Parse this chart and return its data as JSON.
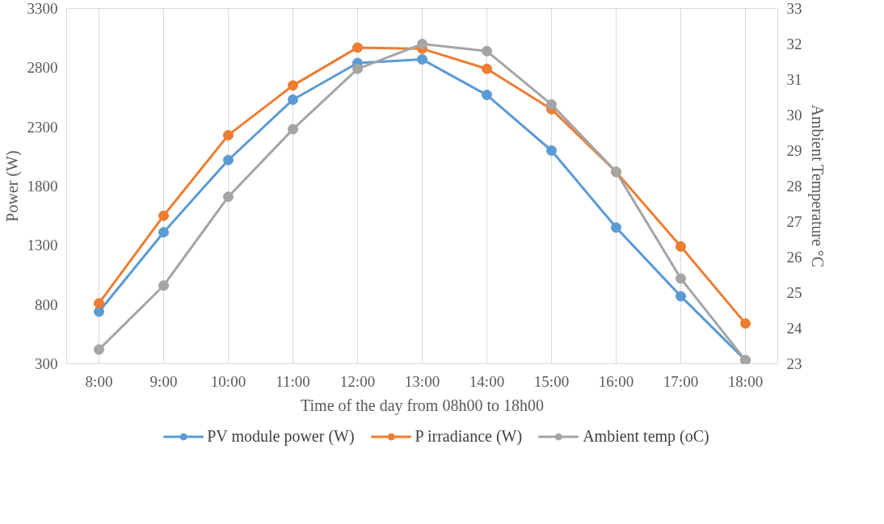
{
  "chart_data": {
    "type": "line",
    "xlabel": "Time of the day from 08h00 to 18h00",
    "ylabel": "Power (W)",
    "y2label": "Ambient Temperature °C",
    "categories": [
      "8:00",
      "9:00",
      "10:00",
      "11:00",
      "12:00",
      "13:00",
      "14:00",
      "15:00",
      "16:00",
      "17:00",
      "18:00"
    ],
    "series": [
      {
        "name": "PV module power (W)",
        "color": "#5b9bd5",
        "values": [
          740,
          1410,
          2020,
          2530,
          2840,
          2870,
          2570,
          2100,
          1450,
          870,
          330
        ]
      },
      {
        "name": "P irradiance (W)",
        "color": "#ed7d31",
        "values": [
          810,
          1550,
          2230,
          2650,
          2970,
          2960,
          2790,
          2450,
          1920,
          1290,
          640
        ]
      },
      {
        "name": "Ambient temp (oC)",
        "color": "#a5a5a5",
        "axis": "y2",
        "values": [
          23.4,
          25.2,
          27.7,
          29.6,
          31.3,
          32.0,
          31.8,
          30.3,
          28.4,
          25.4,
          23.1
        ]
      }
    ],
    "ylim": [
      300,
      3300
    ],
    "yticks": [
      300,
      800,
      1300,
      1800,
      2300,
      2800,
      3300
    ],
    "y2lim": [
      23,
      33
    ],
    "y2ticks": [
      23,
      24,
      25,
      26,
      27,
      28,
      29,
      30,
      31,
      32,
      33
    ],
    "grid": "x",
    "legend": "bottom",
    "marker": "circle",
    "line_style": "solid"
  }
}
